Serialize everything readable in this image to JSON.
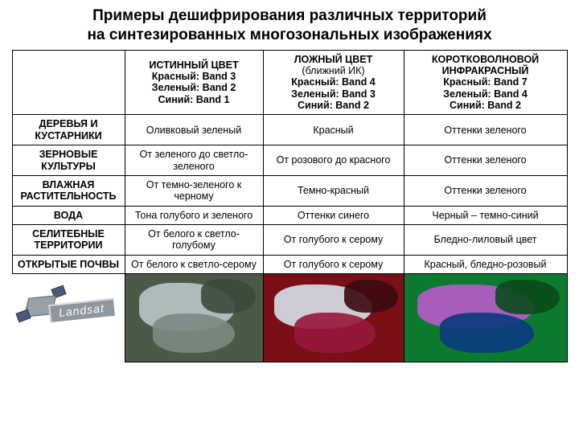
{
  "title_fontsize": 19,
  "table_fontsize": 12.5,
  "title_line1": "Примеры дешифрирования различных территорий",
  "title_line2": "на синтезированных многозональных изображениях",
  "landsat_label": "Landsat",
  "cols": {
    "c1": {
      "main": "ИСТИННЫЙ ЦВЕТ",
      "sub": "",
      "bands": "Красный: Band 3\nЗеленый: Band 2\nСиний: Band 1"
    },
    "c2": {
      "main": "ЛОЖНЫЙ ЦВЕТ",
      "sub": "(ближний ИК)",
      "bands": "Красный: Band 4\nЗеленый: Band 3\nСиний: Band 2"
    },
    "c3": {
      "main": "КОРОТКОВОЛНОВОЙ ИНФРАКРАСНЫЙ",
      "sub": "",
      "bands": "Красный: Band 7\nЗеленый: Band 4\nСиний: Band 2"
    }
  },
  "rows": [
    {
      "label": "ДЕРЕВЬЯ И КУСТАРНИКИ",
      "c1": "Оливковый зеленый",
      "c2": "Красный",
      "c3": "Оттенки зеленого"
    },
    {
      "label": "ЗЕРНОВЫЕ КУЛЬТУРЫ",
      "c1": "От зеленого до светло-зеленого",
      "c2": "От розового до красного",
      "c3": "Оттенки зеленого"
    },
    {
      "label": "ВЛАЖНАЯ РАСТИТЕЛЬНОСТЬ",
      "c1": "От темно-зеленого к черному",
      "c2": "Темно-красный",
      "c3": "Оттенки зеленого"
    },
    {
      "label": "ВОДА",
      "c1": "Тона голубого и зеленого",
      "c2": "Оттенки синего",
      "c3": "Черный – темно-синий"
    },
    {
      "label": "СЕЛИТЕБНЫЕ ТЕРРИТОРИИ",
      "c1": "От белого к светло-голубому",
      "c2": "От голубого к серому",
      "c3": "Бледно-лиловый цвет"
    },
    {
      "label": "ОТКРЫТЫЕ ПОЧВЫ",
      "c1": "От белого к светло-серому",
      "c2": "От голубого к серому",
      "c3": "Красный, бледно-розовый"
    }
  ],
  "thumb_palettes": {
    "truecolor": {
      "bg": "#4a5a46",
      "a": "#b9c4c9",
      "b": "#7c8a82",
      "c": "#3a4a3a"
    },
    "falsecolor": {
      "bg": "#7a0f18",
      "a": "#d6e1ea",
      "b": "#97173a",
      "c": "#3b0910"
    },
    "swir": {
      "bg": "#0c7a2f",
      "a": "#b85acb",
      "b": "#0a3a7e",
      "c": "#0a4a1a"
    }
  }
}
